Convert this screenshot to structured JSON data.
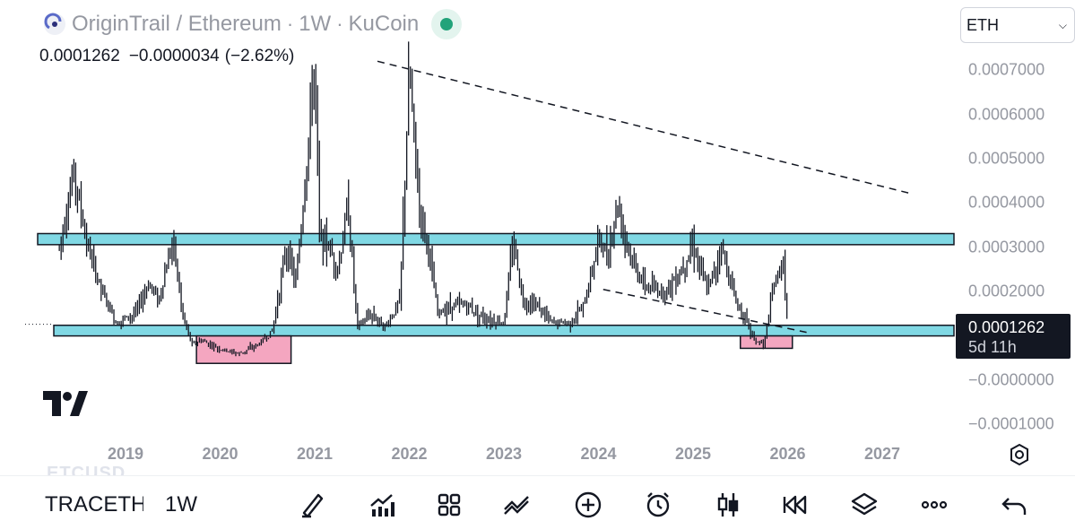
{
  "header": {
    "symbol": "OriginTrail / Ethereum",
    "interval": "1W",
    "exchange": "KuCoin",
    "separator": "·",
    "logo_icon": "origintrail-logo-icon",
    "market_status_color": "#22a37a"
  },
  "ohlc": {
    "price": "0.0001262",
    "change": "−0.0000034",
    "change_pct": "(−2.62%)"
  },
  "currency": {
    "selected": "ETH"
  },
  "price_axis": {
    "labels": [
      "0.0007000",
      "0.0006000",
      "0.0005000",
      "0.0004000",
      "0.0003000",
      "0.0002000",
      "0.0001000",
      "−0.0000000",
      "−0.0001000"
    ],
    "values": [
      0.0007,
      0.0006,
      0.0005,
      0.0004,
      0.0003,
      0.0002,
      0.0001,
      0.0,
      -0.0001
    ]
  },
  "last_price_tag": {
    "value": "0.0001262",
    "countdown": "5d 11h"
  },
  "time_axis": {
    "labels": [
      "2019",
      "2020",
      "2021",
      "2022",
      "2023",
      "2024",
      "2025",
      "2026",
      "2027"
    ]
  },
  "chart_data": {
    "type": "bar",
    "symbol": "TRAC/ETH",
    "interval": "1W",
    "last": 0.0001262,
    "ylim": [
      -0.00012,
      0.00075
    ],
    "keypoints": [
      [
        2018.3,
        0.0003
      ],
      [
        2018.45,
        0.00047
      ],
      [
        2018.6,
        0.0003
      ],
      [
        2018.75,
        0.0002
      ],
      [
        2018.9,
        0.00013
      ],
      [
        2019.1,
        0.00015
      ],
      [
        2019.25,
        0.00022
      ],
      [
        2019.35,
        0.00018
      ],
      [
        2019.5,
        0.00032
      ],
      [
        2019.6,
        0.00015
      ],
      [
        2019.7,
        8e-05
      ],
      [
        2019.8,
        9e-05
      ],
      [
        2020.0,
        7e-05
      ],
      [
        2020.2,
        6e-05
      ],
      [
        2020.4,
        8e-05
      ],
      [
        2020.55,
        0.00011
      ],
      [
        2020.7,
        0.0003
      ],
      [
        2020.8,
        0.00022
      ],
      [
        2020.9,
        0.00045
      ],
      [
        2021.0,
        0.00072
      ],
      [
        2021.05,
        0.00033
      ],
      [
        2021.15,
        0.0003
      ],
      [
        2021.25,
        0.00025
      ],
      [
        2021.35,
        0.0004
      ],
      [
        2021.45,
        0.00012
      ],
      [
        2021.6,
        0.00015
      ],
      [
        2021.75,
        0.00012
      ],
      [
        2021.9,
        0.00018
      ],
      [
        2022.0,
        0.0007
      ],
      [
        2022.1,
        0.0004
      ],
      [
        2022.2,
        0.0003
      ],
      [
        2022.3,
        0.00015
      ],
      [
        2022.45,
        0.00017
      ],
      [
        2022.6,
        0.00017
      ],
      [
        2022.8,
        0.00014
      ],
      [
        2023.0,
        0.00013
      ],
      [
        2023.1,
        0.00032
      ],
      [
        2023.2,
        0.00018
      ],
      [
        2023.35,
        0.00017
      ],
      [
        2023.5,
        0.00013
      ],
      [
        2023.7,
        0.00013
      ],
      [
        2023.85,
        0.00017
      ],
      [
        2024.0,
        0.00032
      ],
      [
        2024.1,
        0.00028
      ],
      [
        2024.2,
        0.0004
      ],
      [
        2024.35,
        0.00027
      ],
      [
        2024.5,
        0.00021
      ],
      [
        2024.7,
        0.0002
      ],
      [
        2024.85,
        0.00024
      ],
      [
        2025.0,
        0.00031
      ],
      [
        2025.15,
        0.0002
      ],
      [
        2025.3,
        0.0003
      ],
      [
        2025.45,
        0.00018
      ],
      [
        2025.55,
        0.00014
      ],
      [
        2025.65,
        9e-05
      ],
      [
        2025.75,
        8e-05
      ],
      [
        2025.85,
        0.00021
      ],
      [
        2025.95,
        0.00027
      ],
      [
        2026.0,
        0.000126
      ]
    ]
  },
  "drawings": {
    "upper_zone": {
      "price_top": 0.000331,
      "price_bottom": 0.000306,
      "color": "#80d8e4"
    },
    "lower_zone": {
      "price_top": 0.000124,
      "price_bottom": 0.0001,
      "color": "#80d8e4"
    },
    "accumulation_boxes": [
      {
        "x_start": 2019.75,
        "x_end": 2020.75,
        "price_top": 0.0001,
        "price_bottom": 3.8e-05,
        "color": "#f4a6c0"
      },
      {
        "x_start": 2025.5,
        "x_end": 2026.05,
        "price_top": 0.0001,
        "price_bottom": 7.2e-05,
        "color": "#f4a6c0"
      }
    ],
    "downtrend_line": {
      "from": [
        2021.0,
        0.00072
      ],
      "to": [
        2027.5,
        0.00042
      ]
    },
    "support_line": {
      "from": [
        2024.05,
        0.000205
      ],
      "to": [
        2026.2,
        0.000108
      ]
    }
  },
  "toolbar": {
    "symbol": "TRACETH",
    "interval": "1W",
    "buttons": [
      "draw-icon",
      "chart-type-icon",
      "layout-grid-icon",
      "compare-icon",
      "add-icon",
      "alert-clock-icon",
      "candles-icon",
      "replay-icon",
      "layers-icon",
      "more-icon",
      "undo-icon"
    ]
  },
  "ghost_text": "ETCUSD"
}
